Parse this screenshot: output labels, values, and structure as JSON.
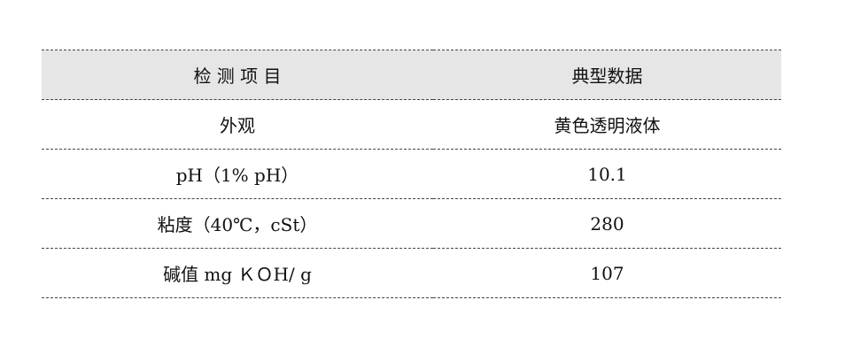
{
  "table": {
    "headers": [
      "检 测 项 目",
      "典型数据"
    ],
    "rows": [
      [
        "外观",
        "黄色透明液体"
      ],
      [
        "pH（1% pH）",
        "10.1"
      ],
      [
        "粘度（40℃，cSt）",
        "280"
      ],
      [
        "碱值 mg ＫＯH/ g",
        "107"
      ]
    ]
  },
  "colors": {
    "header_bg": "#e6e6e6"
  }
}
